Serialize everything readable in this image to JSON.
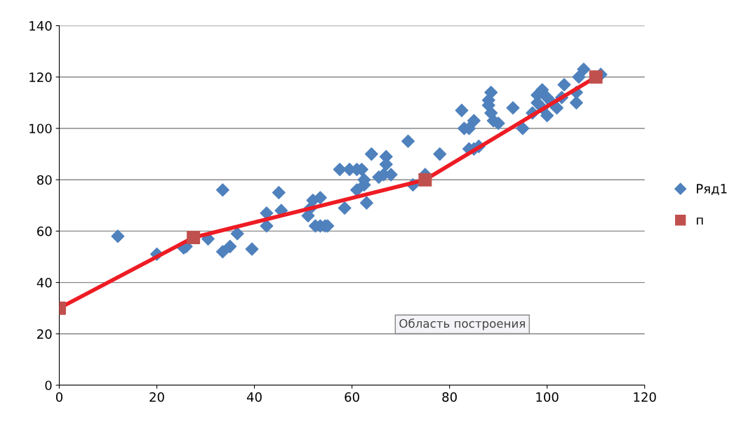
{
  "chart_data": {
    "type": "scatter",
    "xlim": [
      0,
      120
    ],
    "ylim": [
      0,
      140
    ],
    "xticks": [
      0,
      20,
      40,
      60,
      80,
      100,
      120
    ],
    "yticks": [
      0,
      20,
      40,
      60,
      80,
      100,
      120,
      140
    ],
    "grid": "y",
    "legend": "right",
    "annotations": [
      "Область построения"
    ],
    "series": [
      {
        "name": "Ряд1",
        "marker": "diamond",
        "color": "#4f81bd",
        "x": [
          12,
          20,
          25.5,
          26,
          30.5,
          33.5,
          33.5,
          35,
          36.5,
          39.5,
          42.5,
          42.5,
          45,
          45.5,
          51,
          51.5,
          52,
          52.5,
          53.5,
          53.5,
          54.5,
          55,
          57.5,
          58.5,
          59.5,
          61,
          61,
          62,
          62.5,
          62.5,
          63,
          64,
          65.5,
          66.5,
          67,
          67,
          68,
          71.5,
          72.5,
          75,
          78,
          82.5,
          83,
          84,
          84,
          85,
          85,
          86,
          88,
          88,
          88.5,
          88.5,
          89,
          90,
          93,
          95,
          97,
          98,
          98,
          99,
          99,
          100,
          100,
          101,
          102,
          103,
          103.5,
          106,
          106,
          106.5,
          107.5,
          111
        ],
        "values": [
          58,
          51,
          53.5,
          54,
          57,
          52,
          76,
          54,
          59,
          53,
          62,
          67,
          75,
          68,
          66,
          69,
          72,
          62,
          73,
          62,
          62,
          62,
          84,
          69,
          84,
          76,
          84,
          84,
          78,
          80,
          71,
          90,
          81,
          82,
          89,
          86,
          82,
          95,
          78,
          82,
          90,
          107,
          100,
          100,
          92,
          103,
          92,
          93,
          111,
          109,
          114,
          106,
          103,
          102,
          108,
          100,
          106,
          110,
          113,
          115,
          108,
          112,
          105,
          110,
          108,
          112,
          117,
          110,
          114,
          120,
          123,
          121
        ]
      },
      {
        "name": "п",
        "type": "line",
        "marker": "square",
        "color": "#ee1c24",
        "colors": [
          "#c0504d",
          "#c0504d",
          "#c0504d",
          "#c0504d"
        ],
        "x": [
          0,
          27.5,
          75,
          110
        ],
        "values": [
          30,
          57.5,
          80,
          120
        ]
      }
    ]
  }
}
